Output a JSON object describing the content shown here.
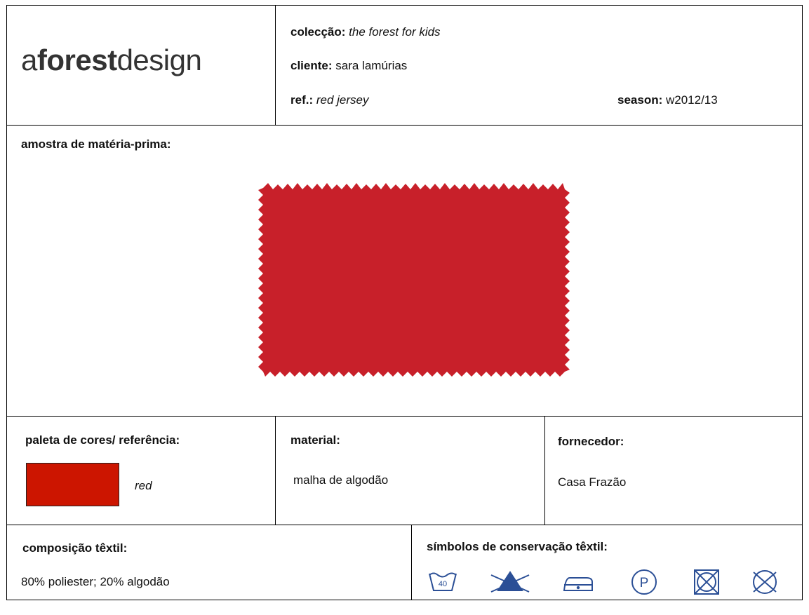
{
  "header": {
    "logo": {
      "prefix": "a",
      "bold": "forest",
      "suffix": "design"
    },
    "fields": {
      "colecao": {
        "label": "colecção:",
        "value": "the forest for kids"
      },
      "cliente": {
        "label": "cliente:",
        "value": "sara lamúrias"
      },
      "ref": {
        "label": "ref.:",
        "value": "red jersey"
      },
      "season": {
        "label": "season:",
        "value": "w2012/13"
      }
    }
  },
  "sample": {
    "label": "amostra de matéria-prima:"
  },
  "palette": {
    "label": "paleta de cores/ referência:",
    "swatch_name": "red",
    "swatch_color": "#cc1500"
  },
  "material": {
    "label": "material:",
    "value": "malha de algodão"
  },
  "supplier": {
    "label": "fornecedor:",
    "value": "Casa Frazão"
  },
  "composition": {
    "label": "composição têxtil:",
    "value": "80% poliester; 20% algodão"
  },
  "care": {
    "label": "símbolos de conservação têxtil:",
    "wash_temp": "40",
    "dry_clean": "P"
  }
}
